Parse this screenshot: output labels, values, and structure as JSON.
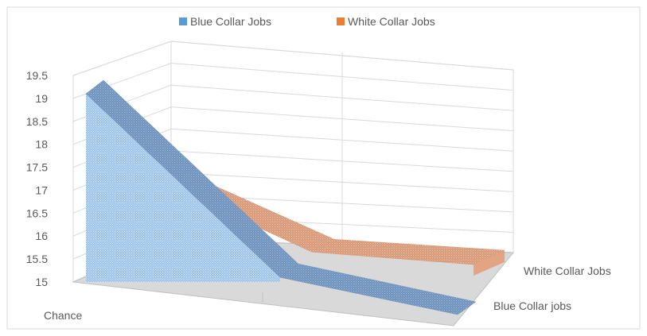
{
  "chart_data": {
    "type": "area",
    "subtype": "3d-area",
    "title": "",
    "categories": [
      "Chance",
      "",
      ""
    ],
    "series": [
      {
        "name": "Blue Collar Jobs",
        "values": [
          19.1,
          15.1,
          15.0
        ],
        "color": "#5b9bd5"
      },
      {
        "name": "White Collar Jobs",
        "values": [
          16.8,
          15.6,
          15.5
        ],
        "color": "#ed7d31"
      }
    ],
    "series_axis_labels": [
      "Blue Collar jobs",
      "White Collar Jobs"
    ],
    "y_ticks": [
      "15",
      "15.5",
      "16",
      "16.5",
      "17",
      "17.5",
      "18",
      "18.5",
      "19",
      "19.5"
    ],
    "ylim": [
      15,
      19.5
    ],
    "grid": true,
    "legend_position": "top"
  }
}
